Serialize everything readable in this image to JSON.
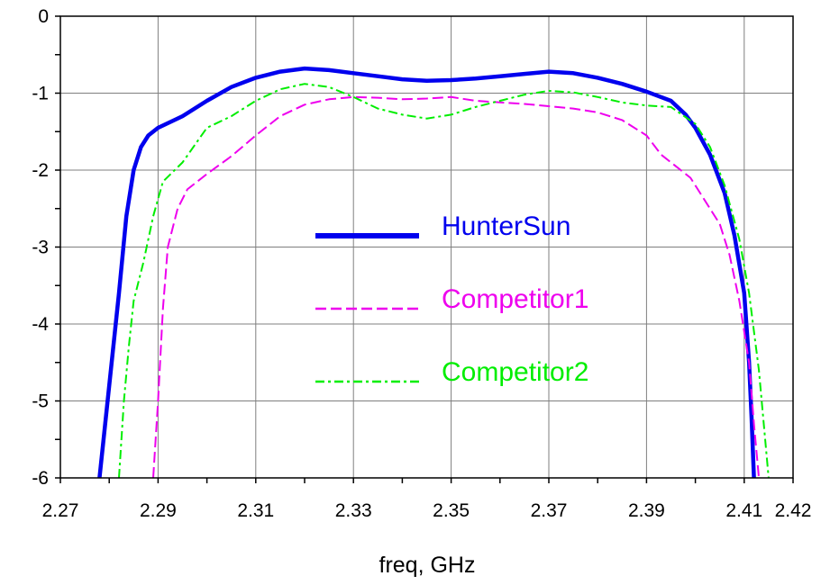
{
  "chart_data": {
    "type": "line",
    "title": "",
    "xlabel": "freq, GHz",
    "ylabel": "",
    "xlim": [
      2.27,
      2.42
    ],
    "ylim": [
      -6,
      0
    ],
    "xticks": [
      2.27,
      2.28,
      2.29,
      2.3,
      2.31,
      2.32,
      2.33,
      2.34,
      2.35,
      2.36,
      2.37,
      2.38,
      2.39,
      2.4,
      2.41,
      2.42
    ],
    "xtick_labels": [
      "2.27",
      "",
      "2.29",
      "",
      "2.31",
      "",
      "2.33",
      "",
      "2.35",
      "",
      "2.37",
      "",
      "2.39",
      "",
      "2.41",
      "2.42"
    ],
    "yticks": [
      0,
      -0.5,
      -1,
      -1.5,
      -2,
      -2.5,
      -3,
      -3.5,
      -4,
      -4.5,
      -5,
      -5.5,
      -6
    ],
    "ytick_labels": [
      "0",
      "",
      "-1",
      "",
      "-2",
      "",
      "-3",
      "",
      "-4",
      "",
      "-5",
      "",
      "-6"
    ],
    "grid": true,
    "legend_position": "center",
    "series": [
      {
        "name": "HunterSun",
        "color": "#0000ee",
        "style": "solid",
        "points": [
          [
            2.278,
            -6.0
          ],
          [
            2.28,
            -4.8
          ],
          [
            2.282,
            -3.6
          ],
          [
            2.2835,
            -2.6
          ],
          [
            2.285,
            -2.0
          ],
          [
            2.2865,
            -1.7
          ],
          [
            2.288,
            -1.55
          ],
          [
            2.29,
            -1.45
          ],
          [
            2.295,
            -1.3
          ],
          [
            2.3,
            -1.1
          ],
          [
            2.305,
            -0.92
          ],
          [
            2.31,
            -0.8
          ],
          [
            2.315,
            -0.72
          ],
          [
            2.32,
            -0.68
          ],
          [
            2.325,
            -0.7
          ],
          [
            2.33,
            -0.74
          ],
          [
            2.335,
            -0.78
          ],
          [
            2.34,
            -0.82
          ],
          [
            2.345,
            -0.84
          ],
          [
            2.35,
            -0.83
          ],
          [
            2.355,
            -0.81
          ],
          [
            2.36,
            -0.78
          ],
          [
            2.365,
            -0.75
          ],
          [
            2.37,
            -0.72
          ],
          [
            2.375,
            -0.74
          ],
          [
            2.38,
            -0.8
          ],
          [
            2.385,
            -0.88
          ],
          [
            2.39,
            -0.98
          ],
          [
            2.395,
            -1.1
          ],
          [
            2.398,
            -1.28
          ],
          [
            2.4,
            -1.45
          ],
          [
            2.403,
            -1.8
          ],
          [
            2.406,
            -2.3
          ],
          [
            2.408,
            -2.85
          ],
          [
            2.41,
            -3.6
          ],
          [
            2.411,
            -4.5
          ],
          [
            2.4115,
            -5.2
          ],
          [
            2.412,
            -6.0
          ]
        ]
      },
      {
        "name": "Competitor1",
        "color": "#ee00ee",
        "style": "dashed",
        "points": [
          [
            2.289,
            -6.0
          ],
          [
            2.29,
            -5.0
          ],
          [
            2.291,
            -3.8
          ],
          [
            2.292,
            -3.0
          ],
          [
            2.294,
            -2.5
          ],
          [
            2.296,
            -2.25
          ],
          [
            2.3,
            -2.05
          ],
          [
            2.305,
            -1.82
          ],
          [
            2.31,
            -1.55
          ],
          [
            2.315,
            -1.3
          ],
          [
            2.32,
            -1.15
          ],
          [
            2.325,
            -1.08
          ],
          [
            2.33,
            -1.05
          ],
          [
            2.335,
            -1.06
          ],
          [
            2.34,
            -1.08
          ],
          [
            2.345,
            -1.07
          ],
          [
            2.35,
            -1.05
          ],
          [
            2.355,
            -1.1
          ],
          [
            2.36,
            -1.12
          ],
          [
            2.365,
            -1.14
          ],
          [
            2.37,
            -1.17
          ],
          [
            2.375,
            -1.2
          ],
          [
            2.38,
            -1.25
          ],
          [
            2.385,
            -1.35
          ],
          [
            2.39,
            -1.55
          ],
          [
            2.393,
            -1.8
          ],
          [
            2.396,
            -1.95
          ],
          [
            2.399,
            -2.1
          ],
          [
            2.402,
            -2.4
          ],
          [
            2.405,
            -2.7
          ],
          [
            2.407,
            -3.1
          ],
          [
            2.409,
            -3.7
          ],
          [
            2.411,
            -4.5
          ],
          [
            2.412,
            -5.3
          ],
          [
            2.413,
            -6.0
          ]
        ]
      },
      {
        "name": "Competitor2",
        "color": "#00ee00",
        "style": "dashdot",
        "points": [
          [
            2.282,
            -6.0
          ],
          [
            2.283,
            -5.0
          ],
          [
            2.284,
            -4.3
          ],
          [
            2.285,
            -3.7
          ],
          [
            2.287,
            -3.2
          ],
          [
            2.289,
            -2.6
          ],
          [
            2.291,
            -2.15
          ],
          [
            2.295,
            -1.9
          ],
          [
            2.3,
            -1.45
          ],
          [
            2.305,
            -1.3
          ],
          [
            2.31,
            -1.1
          ],
          [
            2.315,
            -0.95
          ],
          [
            2.32,
            -0.88
          ],
          [
            2.325,
            -0.92
          ],
          [
            2.33,
            -1.05
          ],
          [
            2.335,
            -1.2
          ],
          [
            2.34,
            -1.28
          ],
          [
            2.345,
            -1.33
          ],
          [
            2.35,
            -1.28
          ],
          [
            2.355,
            -1.18
          ],
          [
            2.36,
            -1.1
          ],
          [
            2.365,
            -1.02
          ],
          [
            2.37,
            -0.97
          ],
          [
            2.375,
            -0.99
          ],
          [
            2.38,
            -1.05
          ],
          [
            2.385,
            -1.12
          ],
          [
            2.39,
            -1.16
          ],
          [
            2.395,
            -1.18
          ],
          [
            2.4,
            -1.4
          ],
          [
            2.403,
            -1.7
          ],
          [
            2.406,
            -2.2
          ],
          [
            2.409,
            -2.9
          ],
          [
            2.411,
            -3.6
          ],
          [
            2.413,
            -4.6
          ],
          [
            2.414,
            -5.3
          ],
          [
            2.415,
            -6.0
          ]
        ]
      }
    ]
  }
}
